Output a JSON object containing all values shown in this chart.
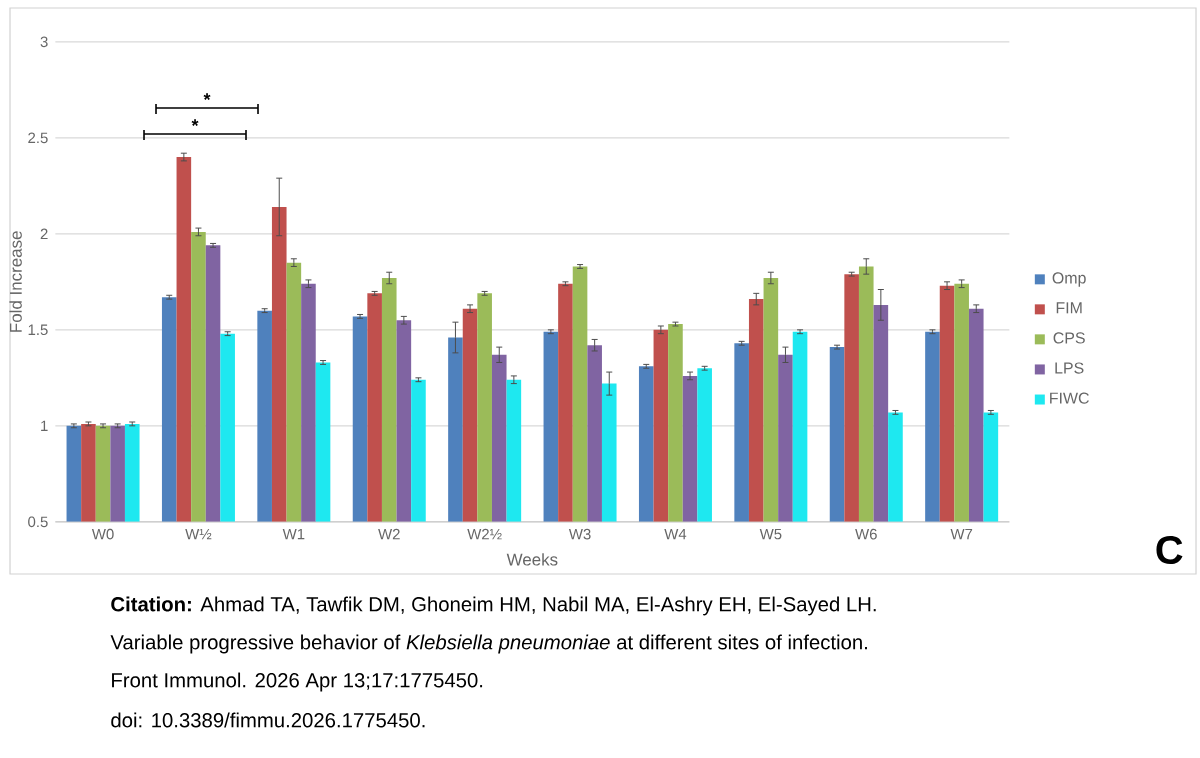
{
  "chart_data": {
    "type": "bar",
    "xlabel": "Weeks",
    "ylabel": "Fold Increase",
    "categories": [
      "W0",
      "W½",
      "W1",
      "W2",
      "W2½",
      "W3",
      "W4",
      "W5",
      "W6",
      "W7"
    ],
    "series": [
      {
        "name": "Omp",
        "color": "#4f81bd",
        "values": [
          1.0,
          1.67,
          1.6,
          1.57,
          1.46,
          1.49,
          1.31,
          1.43,
          1.41,
          1.49
        ],
        "errors": [
          0.01,
          0.01,
          0.01,
          0.01,
          0.08,
          0.01,
          0.01,
          0.01,
          0.01,
          0.01
        ]
      },
      {
        "name": "FIM",
        "color": "#c0504d",
        "values": [
          1.01,
          2.4,
          2.14,
          1.69,
          1.61,
          1.74,
          1.5,
          1.66,
          1.79,
          1.73
        ],
        "errors": [
          0.01,
          0.02,
          0.15,
          0.01,
          0.02,
          0.01,
          0.02,
          0.03,
          0.01,
          0.02
        ]
      },
      {
        "name": "CPS",
        "color": "#9bbb59",
        "values": [
          1.0,
          2.01,
          1.85,
          1.77,
          1.69,
          1.83,
          1.53,
          1.77,
          1.83,
          1.74
        ],
        "errors": [
          0.01,
          0.02,
          0.02,
          0.03,
          0.01,
          0.01,
          0.01,
          0.03,
          0.04,
          0.02
        ]
      },
      {
        "name": "LPS",
        "color": "#8064a2",
        "values": [
          1.0,
          1.94,
          1.74,
          1.55,
          1.37,
          1.42,
          1.26,
          1.37,
          1.63,
          1.61
        ],
        "errors": [
          0.01,
          0.01,
          0.02,
          0.02,
          0.04,
          0.03,
          0.02,
          0.04,
          0.08,
          0.02
        ]
      },
      {
        "name": "FIWC",
        "color": "#1ee8f0",
        "values": [
          1.01,
          1.48,
          1.33,
          1.24,
          1.24,
          1.22,
          1.3,
          1.49,
          1.07,
          1.07
        ],
        "errors": [
          0.01,
          0.01,
          0.01,
          0.01,
          0.02,
          0.06,
          0.01,
          0.01,
          0.01,
          0.01
        ]
      }
    ],
    "ylim": [
      0.5,
      3
    ],
    "yticks": [
      {
        "value": 0.5,
        "label": "0.5"
      },
      1,
      {
        "value": 1.5,
        "label": "1.5"
      },
      2,
      {
        "value": 2.5,
        "label": "2.5"
      },
      3
    ],
    "grid": "y",
    "legend": "right",
    "annotations": [
      "*",
      "*",
      "C",
      "**Citation:** Ahmad TA, Tawfik DM, Ghoneim HM, Nabil MA, El-Ashry EH, El-Sayed LH.",
      "Variable progressive behavior of *Klebsiella pneumoniae* at different sites of infection.",
      "Front Immunol. 2026 Apr 13;17:1775450.",
      "doi: 10.3389/fimmu.2026.1775450."
    ]
  }
}
